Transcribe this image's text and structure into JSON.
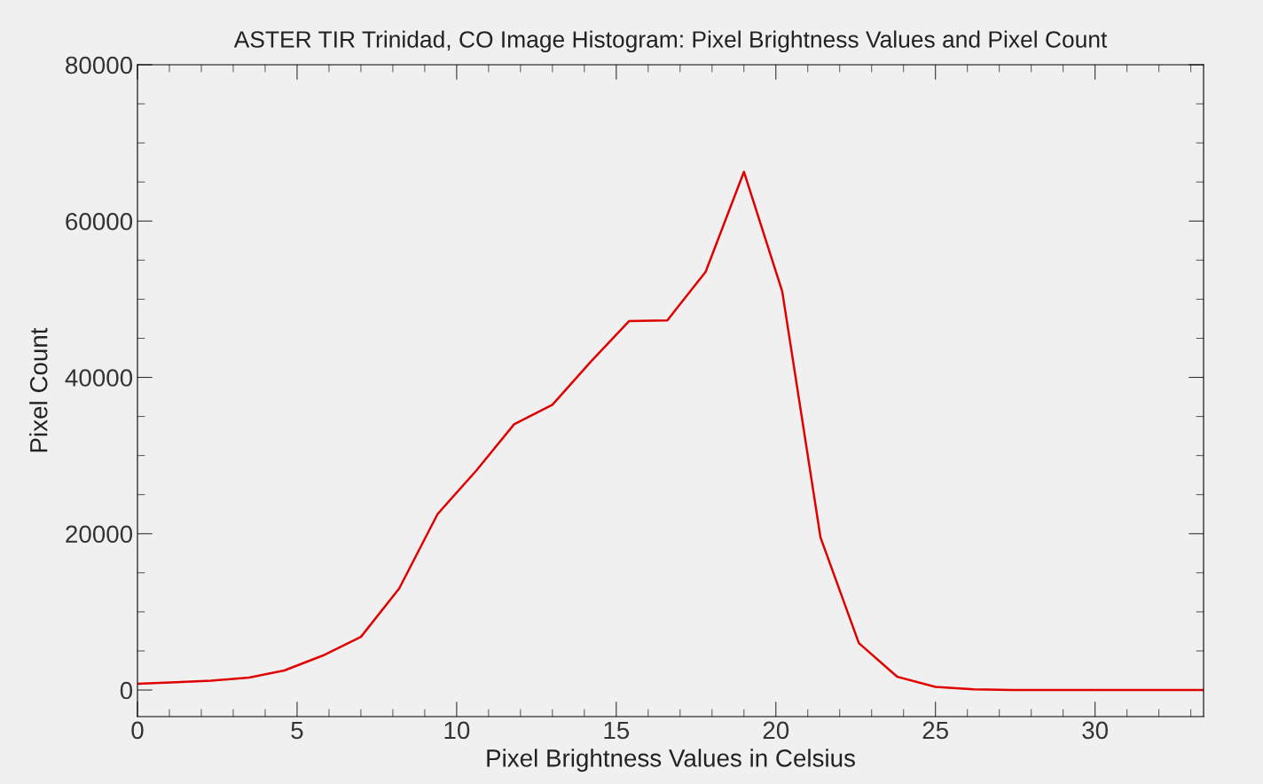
{
  "chart_data": {
    "type": "line",
    "title": "ASTER TIR Trinidad, CO Image Histogram: Pixel Brightness Values and Pixel Count",
    "xlabel": "Pixel Brightness Values in Celsius",
    "ylabel": "Pixel Count",
    "x": [
      0,
      1.2,
      2.3,
      3.5,
      4.6,
      5.8,
      7.0,
      8.2,
      9.4,
      10.6,
      11.8,
      13.0,
      14.2,
      15.4,
      16.6,
      17.8,
      19.0,
      20.2,
      21.4,
      22.6,
      23.8,
      25.0,
      26.2,
      27.4,
      28.6,
      29.8,
      31.0,
      32.2,
      33.4
    ],
    "series": [
      {
        "color": "#e00000",
        "values": [
          800,
          1000,
          1200,
          1600,
          2500,
          4400,
          6800,
          13000,
          22500,
          28000,
          34000,
          36500,
          42000,
          47200,
          47300,
          53500,
          66300,
          51000,
          19500,
          6000,
          1700,
          400,
          100,
          0,
          0,
          0,
          0,
          0,
          0
        ]
      }
    ],
    "xlim": [
      0,
      33.4
    ],
    "ylim": [
      -3400,
      80000
    ],
    "xticks": [
      0,
      5,
      10,
      15,
      20,
      25,
      30
    ],
    "yticks": [
      0,
      20000,
      40000,
      60000,
      80000
    ],
    "grid": false,
    "legend": false,
    "marker": "none",
    "line_style": "solid"
  }
}
